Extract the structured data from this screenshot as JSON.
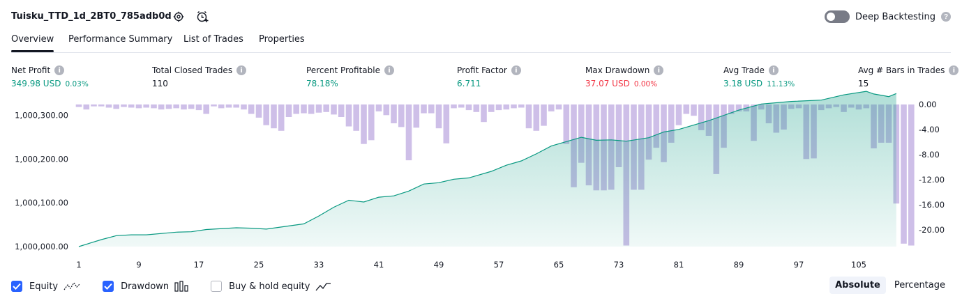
{
  "header": {
    "strategy_name": "Tuisku_TTD_1d_2BT0_785adb0d",
    "deep_backtesting_label": "Deep Backtesting",
    "deep_backtesting_on": false
  },
  "tabs": [
    "Overview",
    "Performance Summary",
    "List of Trades",
    "Properties"
  ],
  "metrics": [
    {
      "label": "Net Profit",
      "value": "349.98 USD",
      "sub": "0.03%",
      "tone": "pos"
    },
    {
      "label": "Total Closed Trades",
      "value": "110",
      "sub": "",
      "tone": "plain"
    },
    {
      "label": "Percent Profitable",
      "value": "78.18%",
      "sub": "",
      "tone": "pos"
    },
    {
      "label": "Profit Factor",
      "value": "6.711",
      "sub": "",
      "tone": "pos"
    },
    {
      "label": "Max Drawdown",
      "value": "37.07 USD",
      "sub": "0.00%",
      "tone": "neg"
    },
    {
      "label": "Avg Trade",
      "value": "3.18 USD",
      "sub": "11.13%",
      "tone": "pos"
    },
    {
      "label": "Avg # Bars in Trades",
      "value": "15",
      "sub": "",
      "tone": "plain"
    }
  ],
  "chart_data": {
    "type": "area",
    "x_ticks": [
      "1",
      "9",
      "17",
      "25",
      "33",
      "41",
      "49",
      "57",
      "65",
      "73",
      "81",
      "89",
      "97",
      "105"
    ],
    "left_axis_labels": [
      "1,000,300.00",
      "1,000,200.00",
      "1,000,100.00",
      "1,000,000.00"
    ],
    "right_axis_labels": [
      "0.00",
      "-4.00",
      "-8.00",
      "-12.00",
      "-16.00",
      "-20.00"
    ],
    "equity_range": [
      1000000,
      1000360
    ],
    "drawdown_range": [
      -22.5,
      0.5
    ],
    "equity": [
      [
        1,
        1000000
      ],
      [
        4,
        1000016
      ],
      [
        6,
        1000025
      ],
      [
        8,
        1000027
      ],
      [
        10,
        1000027
      ],
      [
        14,
        1000033
      ],
      [
        16,
        1000034
      ],
      [
        18,
        1000039
      ],
      [
        22,
        1000043
      ],
      [
        24,
        1000042
      ],
      [
        26,
        1000040
      ],
      [
        31,
        1000052
      ],
      [
        33,
        1000070
      ],
      [
        35,
        1000090
      ],
      [
        37,
        1000106
      ],
      [
        39,
        1000102
      ],
      [
        41,
        1000113
      ],
      [
        43,
        1000116
      ],
      [
        45,
        1000127
      ],
      [
        47,
        1000143
      ],
      [
        49,
        1000146
      ],
      [
        51,
        1000154
      ],
      [
        53,
        1000157
      ],
      [
        56,
        1000172
      ],
      [
        58,
        1000186
      ],
      [
        60,
        1000196
      ],
      [
        62,
        1000212
      ],
      [
        64,
        1000230
      ],
      [
        66,
        1000240
      ],
      [
        68,
        1000250
      ],
      [
        70,
        1000243
      ],
      [
        72,
        1000244
      ],
      [
        74,
        1000241
      ],
      [
        77,
        1000249
      ],
      [
        79,
        1000262
      ],
      [
        81,
        1000268
      ],
      [
        85,
        1000288
      ],
      [
        89,
        1000312
      ],
      [
        92,
        1000326
      ],
      [
        96,
        1000332
      ],
      [
        100,
        1000335
      ],
      [
        103,
        1000347
      ],
      [
        106,
        1000355
      ],
      [
        107,
        1000349
      ],
      [
        109,
        1000343
      ],
      [
        110,
        1000350
      ]
    ],
    "drawdown": [
      -0.4,
      -0.8,
      -0.3,
      -0.3,
      -0.5,
      -0.7,
      -0.4,
      -0.5,
      -0.6,
      -0.5,
      -0.6,
      -0.8,
      -0.7,
      -0.6,
      -0.8,
      -0.7,
      -0.9,
      -1.5,
      -0.3,
      -0.6,
      -0.5,
      -0.5,
      -0.8,
      -1.5,
      -2.1,
      -3.3,
      -3.8,
      -4.2,
      -2.0,
      -1.5,
      -1.4,
      -1.5,
      -1.3,
      -1.2,
      -1.6,
      -2.0,
      -3.5,
      -4.2,
      -6.3,
      -5.7,
      -1.1,
      -1.7,
      -3.0,
      -3.6,
      -8.9,
      -3.7,
      -1.4,
      -1.4,
      -3.8,
      -6.2,
      -0.6,
      -0.5,
      -0.9,
      -1.2,
      -2.8,
      -1.2,
      -0.9,
      -0.8,
      -0.6,
      -0.5,
      -3.8,
      -4.2,
      -3.4,
      -1.1,
      -0.8,
      -6.3,
      -13.2,
      -9.3,
      -12.9,
      -13.7,
      -13.7,
      -13.6,
      -10.0,
      -22.5,
      -13.6,
      -13.6,
      -8.8,
      -6.9,
      -9.2,
      -6.1,
      -3.3,
      -1.5,
      -1.8,
      -4.1,
      -5.0,
      -11.1,
      -6.9,
      -1.5,
      -1.1,
      -1.1,
      -5.8,
      -0.8,
      -3.0,
      -4.5,
      -4.0,
      -0.7,
      -0.6,
      -8.7,
      -8.6,
      -0.9,
      -0.6,
      -0.4,
      -1.2,
      -0.5,
      -0.8,
      -0.6,
      -7.0,
      -6.1,
      -6.1,
      -15.8,
      -22.2,
      -22.5
    ],
    "colors": {
      "equity": "#089981",
      "drawdown": "#b39ddb"
    }
  },
  "legend": [
    {
      "label": "Equity",
      "checked": true,
      "icon": "equity-line-icon"
    },
    {
      "label": "Drawdown",
      "checked": true,
      "icon": "drawdown-bars-icon"
    },
    {
      "label": "Buy & hold equity",
      "checked": false,
      "icon": "buy-hold-line-icon"
    }
  ],
  "modes": [
    "Absolute",
    "Percentage"
  ],
  "active_mode": "Absolute"
}
